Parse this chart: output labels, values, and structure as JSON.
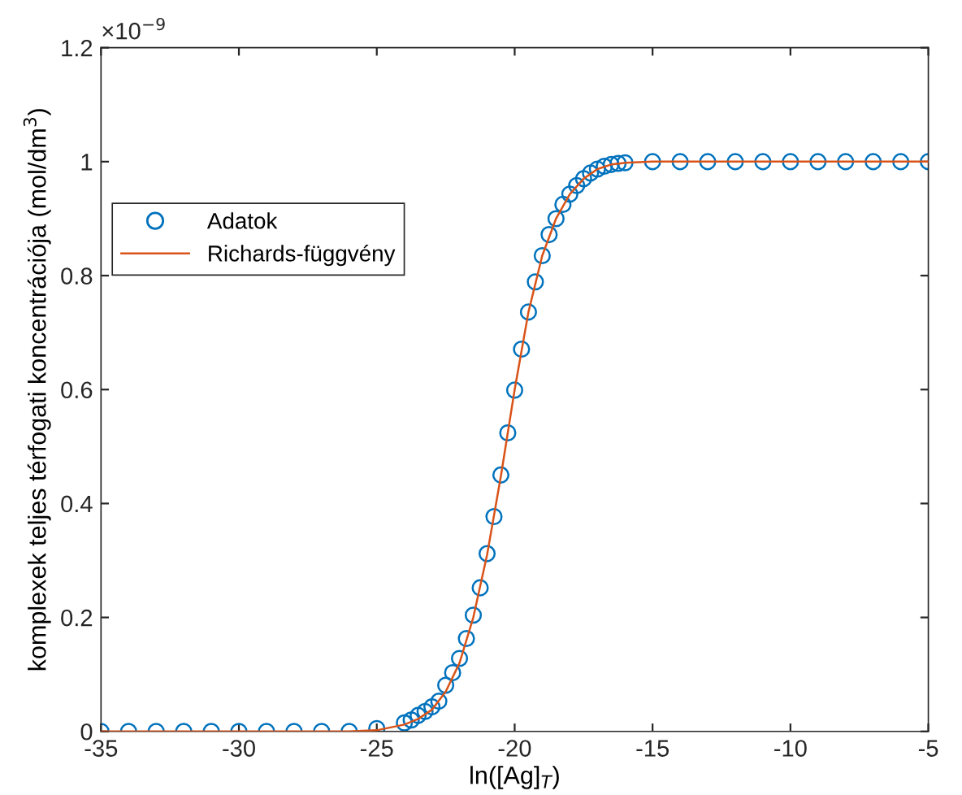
{
  "chart_data": {
    "type": "scatter",
    "xlabel": "ln([Ag]$_{T}$)",
    "ylabel": "komplexek teljes térfogati koncentrációja (mol/dm$^{3}$)",
    "annotations": [
      "×10$^{−9}$"
    ],
    "xlim": [
      -35,
      -5
    ],
    "xticks": [
      -35,
      -30,
      -25,
      -20,
      -15,
      -10,
      -5
    ],
    "ylim": [
      0,
      1.2
    ],
    "yticks": [
      0,
      0.2,
      0.4,
      0.6,
      0.8,
      1,
      1.2
    ],
    "grid": false,
    "legend": "left",
    "series": [
      {
        "name": "Adatok",
        "marker": "circle",
        "color": "#0072bd",
        "x": [
          -35,
          -34,
          -33,
          -32,
          -31,
          -30,
          -29,
          -28,
          -27,
          -26,
          -25,
          -24,
          -23.75,
          -23.5,
          -23.25,
          -23,
          -22.75,
          -22.5,
          -22.25,
          -22,
          -21.75,
          -21.5,
          -21.25,
          -21,
          -20.75,
          -20.5,
          -20.25,
          -20,
          -19.75,
          -19.5,
          -19.25,
          -19,
          -18.75,
          -18.5,
          -18.25,
          -18,
          -17.75,
          -17.5,
          -17.25,
          -17,
          -16.75,
          -16.5,
          -16.25,
          -16,
          -15,
          -14,
          -13,
          -12,
          -11,
          -10,
          -9,
          -8,
          -7,
          -6,
          -5
        ],
        "values": [
          0,
          0,
          0,
          0,
          0,
          0,
          0,
          0,
          0,
          0,
          0.005,
          0.015,
          0.02,
          0.028,
          0.035,
          0.043,
          0.053,
          0.081,
          0.103,
          0.128,
          0.163,
          0.204,
          0.252,
          0.312,
          0.377,
          0.45,
          0.524,
          0.599,
          0.671,
          0.736,
          0.789,
          0.835,
          0.872,
          0.9,
          0.925,
          0.943,
          0.958,
          0.97,
          0.98,
          0.987,
          0.992,
          0.995,
          0.997,
          0.998,
          1,
          1,
          1,
          1,
          1,
          1,
          1,
          1,
          1,
          1,
          1
        ]
      },
      {
        "name": "Richards-függvény",
        "type": "line",
        "marker": "none",
        "line_style": "solid",
        "color": "#d95319",
        "x": [
          -35,
          -26,
          -25,
          -24,
          -23.5,
          -23,
          -22.5,
          -22,
          -21.5,
          -21,
          -20.5,
          -20,
          -19.5,
          -19,
          -18.5,
          -18,
          -17.5,
          -17,
          -16.5,
          -16,
          -15,
          -5
        ],
        "values": [
          0,
          0,
          0.002,
          0.012,
          0.022,
          0.038,
          0.07,
          0.12,
          0.2,
          0.31,
          0.448,
          0.6,
          0.736,
          0.835,
          0.9,
          0.943,
          0.97,
          0.987,
          0.995,
          0.998,
          1,
          1
        ]
      }
    ]
  }
}
